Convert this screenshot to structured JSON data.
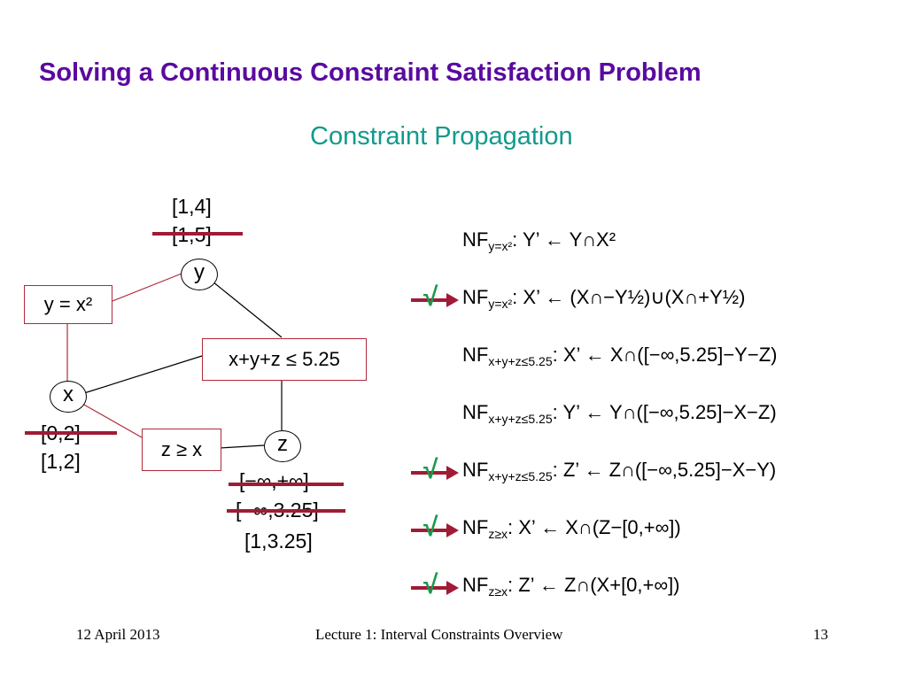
{
  "title": "Solving a Continuous Constraint Satisfaction Problem",
  "subtitle": "Constraint Propagation",
  "graph": {
    "nodes": {
      "y": "y",
      "x": "x",
      "z": "z"
    },
    "constraints": {
      "square": "y = x²",
      "sum": "x+y+z ≤ 5.25",
      "ge": "z ≥ x"
    },
    "domains": {
      "y": {
        "current": "[1,4]",
        "struck": "[1,5]"
      },
      "x": {
        "struck": "[0,2]",
        "current": "[1,2]"
      },
      "z": {
        "struck1": "[−∞,+∞]",
        "struck2": "[−∞,3.25]",
        "current": "[1,3.25]"
      }
    }
  },
  "rules": [
    {
      "nf": "NF",
      "sub": "y=x²",
      "body": ": Y’ ← Y∩X²",
      "checked": false
    },
    {
      "nf": "NF",
      "sub": "y=x²",
      "body": ": X’ ← (X∩−Y½)∪(X∩+Y½)",
      "checked": true
    },
    {
      "nf": "NF",
      "sub": "x+y+z≤5.25",
      "body": ": X’ ← X∩([−∞,5.25]−Y−Z)",
      "checked": false
    },
    {
      "nf": "NF",
      "sub": "x+y+z≤5.25",
      "body": ": Y’ ← Y∩([−∞,5.25]−X−Z)",
      "checked": false
    },
    {
      "nf": "NF",
      "sub": "x+y+z≤5.25",
      "body": ": Z’ ← Z∩([−∞,5.25]−X−Y)",
      "checked": true
    },
    {
      "nf": "NF",
      "sub": "z≥x",
      "body": ": X’ ← X∩(Z−[0,+∞])",
      "checked": true
    },
    {
      "nf": "NF",
      "sub": "z≥x",
      "body": ": Z’ ← Z∩(X+[0,+∞])",
      "checked": true
    }
  ],
  "marks": {
    "check": "√"
  },
  "colors": {
    "title": "#5a0aa0",
    "subtitle": "#119a8c",
    "strike": "#a01b35",
    "check": "#1a9a4a",
    "box": "#b0293a"
  },
  "footer": {
    "date": "12 April 2013",
    "center": "Lecture 1: Interval Constraints Overview",
    "page": "13"
  }
}
